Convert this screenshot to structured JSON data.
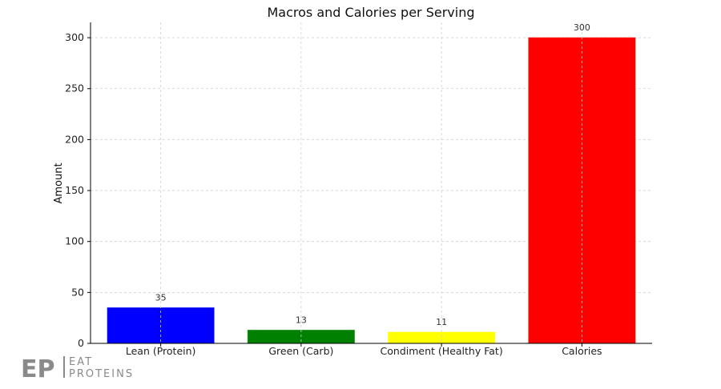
{
  "chart_data": {
    "type": "bar",
    "title": "Macros and Calories per Serving",
    "xlabel": "",
    "ylabel": "Amount",
    "categories": [
      "Lean (Protein)",
      "Green (Carb)",
      "Condiment (Healthy Fat)",
      "Calories"
    ],
    "values": [
      35,
      13,
      11,
      300
    ],
    "data_labels": [
      "35",
      "13",
      "11",
      "300"
    ],
    "colors": [
      "#0000ff",
      "#008000",
      "#ffff00",
      "#ff0000"
    ],
    "ylim": [
      0,
      315
    ],
    "yticks": [
      0,
      50,
      100,
      150,
      200,
      250,
      300
    ],
    "grid": true,
    "legend": "none"
  },
  "logo": {
    "mark": "EP",
    "line1": "EAT",
    "line2": "PROTEINS"
  }
}
